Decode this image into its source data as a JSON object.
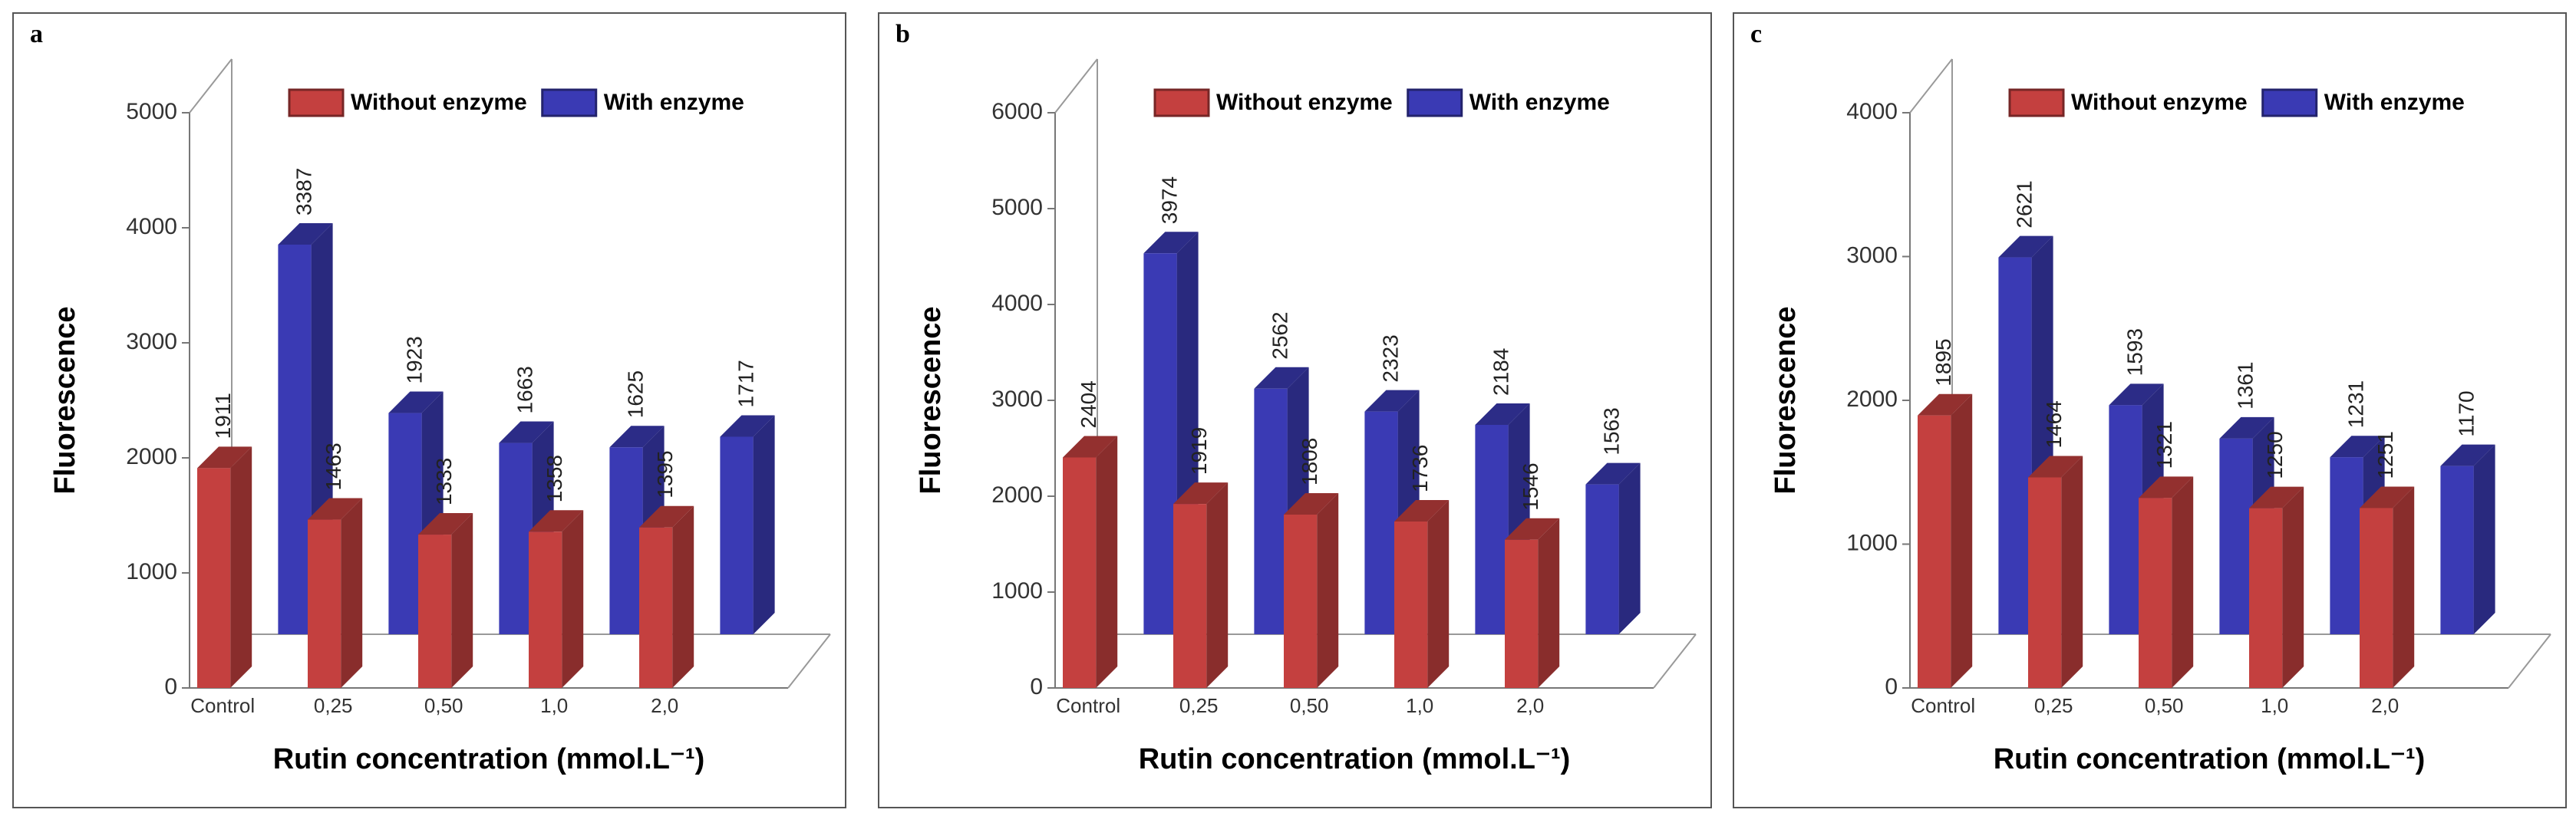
{
  "chart_data": [
    {
      "type": "bar",
      "panel_label": "a",
      "ylabel": "Fluorescence",
      "xlabel": "Rutin concentration (mmol.L⁻¹)",
      "categories": [
        "Control",
        "0,25",
        "0,50",
        "1,0",
        "2,0"
      ],
      "series": [
        {
          "name": "Without enzyme",
          "color": "#c4403f",
          "values": [
            1911,
            1463,
            1333,
            1358,
            1395
          ]
        },
        {
          "name": "With enzyme",
          "color": "#3a3ab4",
          "values": [
            3387,
            1923,
            1663,
            1625,
            1717
          ]
        }
      ],
      "ylim": [
        0,
        5000
      ],
      "yticks": [
        0,
        1000,
        2000,
        3000,
        4000,
        5000
      ],
      "legend": "top"
    },
    {
      "type": "bar",
      "panel_label": "b",
      "ylabel": "Fluorescence",
      "xlabel": "Rutin concentration (mmol.L⁻¹)",
      "categories": [
        "Control",
        "0,25",
        "0,50",
        "1,0",
        "2,0"
      ],
      "series": [
        {
          "name": "Without enzyme",
          "color": "#c4403f",
          "values": [
            2404,
            1919,
            1808,
            1736,
            1546
          ]
        },
        {
          "name": "With enzyme",
          "color": "#3a3ab4",
          "values": [
            3974,
            2562,
            2323,
            2184,
            1563
          ]
        }
      ],
      "ylim": [
        0,
        6000
      ],
      "yticks": [
        0,
        1000,
        2000,
        3000,
        4000,
        5000,
        6000
      ],
      "legend": "top"
    },
    {
      "type": "bar",
      "panel_label": "c",
      "ylabel": "Fluorescence",
      "xlabel": "Rutin concentration (mmol.L⁻¹)",
      "categories": [
        "Control",
        "0,25",
        "0,50",
        "1,0",
        "2,0"
      ],
      "series": [
        {
          "name": "Without enzyme",
          "color": "#c4403f",
          "values": [
            1895,
            1464,
            1321,
            1250,
            1251
          ]
        },
        {
          "name": "With enzyme",
          "color": "#3a3ab4",
          "values": [
            2621,
            1593,
            1361,
            1231,
            1170
          ]
        }
      ],
      "ylim": [
        0,
        4000
      ],
      "yticks": [
        0,
        1000,
        2000,
        3000,
        4000
      ],
      "legend": "top"
    }
  ]
}
